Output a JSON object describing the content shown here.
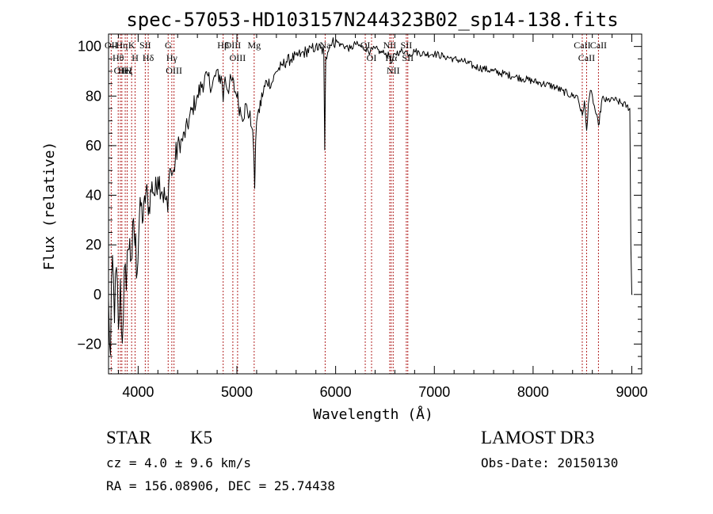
{
  "chart_data": {
    "type": "line",
    "title": "spec-57053-HD103157N244323B02_sp14-138.fits",
    "xlabel": "Wavelength (Å)",
    "ylabel": "Flux (relative)",
    "xlim": [
      3700,
      9100
    ],
    "ylim": [
      -32,
      105
    ],
    "x_ticks": [
      4000,
      5000,
      6000,
      7000,
      8000,
      9000
    ],
    "x_tick_labels": [
      "4000",
      "5000",
      "6000",
      "7000",
      "8000",
      "9000"
    ],
    "y_ticks": [
      -20,
      0,
      20,
      40,
      60,
      80,
      100
    ],
    "y_tick_labels": [
      "−20",
      "0",
      "20",
      "40",
      "60",
      "80",
      "100"
    ],
    "series": [
      {
        "name": "flux",
        "x": [
          3700,
          3720,
          3740,
          3760,
          3780,
          3800,
          3820,
          3840,
          3860,
          3880,
          3900,
          3930,
          3960,
          3990,
          4020,
          4050,
          4080,
          4110,
          4140,
          4170,
          4200,
          4240,
          4280,
          4300,
          4320,
          4340,
          4360,
          4400,
          4450,
          4500,
          4550,
          4600,
          4650,
          4700,
          4750,
          4800,
          4850,
          4861,
          4880,
          4900,
          4950,
          5000,
          5050,
          5100,
          5150,
          5170,
          5180,
          5190,
          5200,
          5220,
          5260,
          5300,
          5350,
          5400,
          5450,
          5500,
          5550,
          5600,
          5650,
          5700,
          5750,
          5800,
          5850,
          5880,
          5890,
          5895,
          5900,
          5920,
          5950,
          6000,
          6050,
          6100,
          6150,
          6200,
          6250,
          6300,
          6350,
          6400,
          6450,
          6500,
          6550,
          6563,
          6600,
          6650,
          6700,
          6750,
          6800,
          6900,
          7000,
          7100,
          7200,
          7300,
          7400,
          7500,
          7600,
          7700,
          7800,
          7900,
          8000,
          8100,
          8200,
          8300,
          8400,
          8450,
          8498,
          8520,
          8542,
          8560,
          8580,
          8600,
          8620,
          8662,
          8700,
          8750,
          8800,
          8850,
          8900,
          8950,
          8980,
          8990,
          9000,
          9005
        ],
        "y": [
          -5,
          -25,
          15,
          -10,
          10,
          -15,
          5,
          -20,
          12,
          0,
          20,
          15,
          25,
          10,
          38,
          30,
          42,
          35,
          45,
          40,
          48,
          42,
          38,
          33,
          52,
          48,
          50,
          60,
          62,
          68,
          75,
          80,
          85,
          88,
          84,
          90,
          86,
          78,
          88,
          83,
          86,
          80,
          72,
          76,
          68,
          58,
          42,
          62,
          70,
          74,
          80,
          86,
          85,
          90,
          92,
          94,
          95,
          96,
          97,
          98,
          99,
          100,
          99,
          98,
          58,
          80,
          96,
          98,
          101,
          102,
          101,
          100,
          99,
          101,
          100,
          99,
          98,
          99,
          98,
          97,
          96,
          93,
          97,
          98,
          98,
          97,
          98,
          97,
          97,
          96,
          95,
          94,
          92,
          91,
          90,
          89,
          88,
          87,
          86,
          85,
          84,
          82,
          80,
          80,
          72,
          78,
          66,
          77,
          82,
          80,
          76,
          68,
          79,
          78,
          79,
          78,
          77,
          76,
          75,
          20,
          0,
          0
        ]
      }
    ],
    "line_markers": [
      {
        "wavelength": 3727,
        "label": "OII"
      },
      {
        "wavelength": 3798,
        "label": "Hθ"
      },
      {
        "wavelength": 3820,
        "label": "OII"
      },
      {
        "wavelength": 3835,
        "label": "Hη"
      },
      {
        "wavelength": 3869,
        "label": "HeI"
      },
      {
        "wavelength": 3889,
        "label": "Hζ"
      },
      {
        "wavelength": 3934,
        "label": "K"
      },
      {
        "wavelength": 3969,
        "label": "H"
      },
      {
        "wavelength": 4072,
        "label": "SII"
      },
      {
        "wavelength": 4102,
        "label": "Hδ"
      },
      {
        "wavelength": 4304,
        "label": "G"
      },
      {
        "wavelength": 4341,
        "label": "Hγ"
      },
      {
        "wavelength": 4363,
        "label": "OIII"
      },
      {
        "wavelength": 4861,
        "label": "Hβ"
      },
      {
        "wavelength": 4959,
        "label": "OIII"
      },
      {
        "wavelength": 5007,
        "label": "OIII"
      },
      {
        "wavelength": 5175,
        "label": "Mg"
      },
      {
        "wavelength": 5894,
        "label": "Na"
      },
      {
        "wavelength": 6300,
        "label": "OI"
      },
      {
        "wavelength": 6364,
        "label": "OI"
      },
      {
        "wavelength": 6548,
        "label": "NII"
      },
      {
        "wavelength": 6563,
        "label": "Hα"
      },
      {
        "wavelength": 6583,
        "label": "NII"
      },
      {
        "wavelength": 6716,
        "label": "SII"
      },
      {
        "wavelength": 6731,
        "label": "SII"
      },
      {
        "wavelength": 8498,
        "label": "CaII"
      },
      {
        "wavelength": 8542,
        "label": "CaII"
      },
      {
        "wavelength": 8662,
        "label": "CaII"
      }
    ]
  },
  "info": {
    "object_type": "STAR",
    "subclass": "K5",
    "redshift": "cz = 4.0 ± 9.6 km/s",
    "coords": "RA = 156.08906, DEC =  25.74438",
    "survey": "LAMOST DR3",
    "obs_date": "Obs-Date: 20150130"
  },
  "colors": {
    "spectrum": "#000000",
    "marker": "#b22222",
    "axis": "#000000"
  }
}
